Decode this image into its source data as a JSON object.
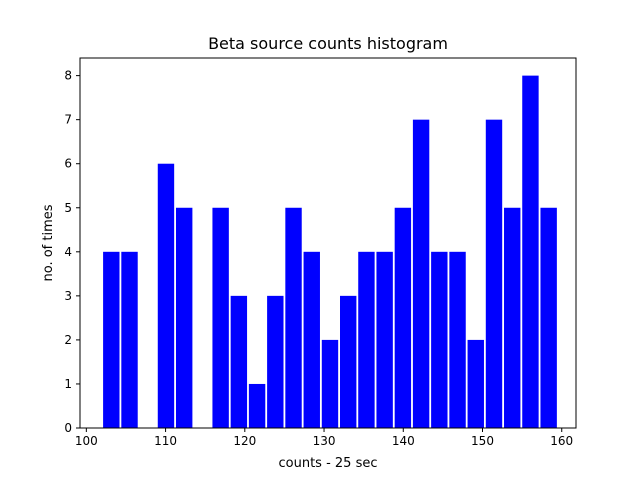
{
  "chart_data": {
    "type": "bar",
    "title": "Beta source counts histogram",
    "xlabel": "counts - 25 sec",
    "ylabel": "no. of times",
    "xlim": [
      99.2,
      161.8
    ],
    "ylim": [
      0,
      8.4
    ],
    "xticks": [
      100,
      110,
      120,
      130,
      140,
      150,
      160
    ],
    "yticks": [
      0,
      1,
      2,
      3,
      4,
      5,
      6,
      7,
      8
    ],
    "bar_color": "#0000ff",
    "grid": false,
    "bins": [
      {
        "x0": 102.0,
        "x1": 104.3,
        "value": 4
      },
      {
        "x0": 104.3,
        "x1": 106.6,
        "value": 4
      },
      {
        "x0": 106.6,
        "x1": 108.9,
        "value": 0
      },
      {
        "x0": 108.9,
        "x1": 111.2,
        "value": 6
      },
      {
        "x0": 111.2,
        "x1": 113.5,
        "value": 5
      },
      {
        "x0": 113.5,
        "x1": 115.8,
        "value": 0
      },
      {
        "x0": 115.8,
        "x1": 118.1,
        "value": 5
      },
      {
        "x0": 118.1,
        "x1": 120.4,
        "value": 3
      },
      {
        "x0": 120.4,
        "x1": 122.7,
        "value": 1
      },
      {
        "x0": 122.7,
        "x1": 125.0,
        "value": 3
      },
      {
        "x0": 125.0,
        "x1": 127.3,
        "value": 5
      },
      {
        "x0": 127.3,
        "x1": 129.6,
        "value": 4
      },
      {
        "x0": 129.6,
        "x1": 131.9,
        "value": 2
      },
      {
        "x0": 131.9,
        "x1": 134.2,
        "value": 3
      },
      {
        "x0": 134.2,
        "x1": 136.5,
        "value": 4
      },
      {
        "x0": 136.5,
        "x1": 138.8,
        "value": 4
      },
      {
        "x0": 138.8,
        "x1": 141.1,
        "value": 5
      },
      {
        "x0": 141.1,
        "x1": 143.4,
        "value": 7
      },
      {
        "x0": 143.4,
        "x1": 145.7,
        "value": 4
      },
      {
        "x0": 145.7,
        "x1": 148.0,
        "value": 4
      },
      {
        "x0": 148.0,
        "x1": 150.3,
        "value": 2
      },
      {
        "x0": 150.3,
        "x1": 152.6,
        "value": 7
      },
      {
        "x0": 152.6,
        "x1": 154.9,
        "value": 5
      },
      {
        "x0": 154.9,
        "x1": 157.2,
        "value": 8
      },
      {
        "x0": 157.2,
        "x1": 159.5,
        "value": 5
      }
    ]
  }
}
